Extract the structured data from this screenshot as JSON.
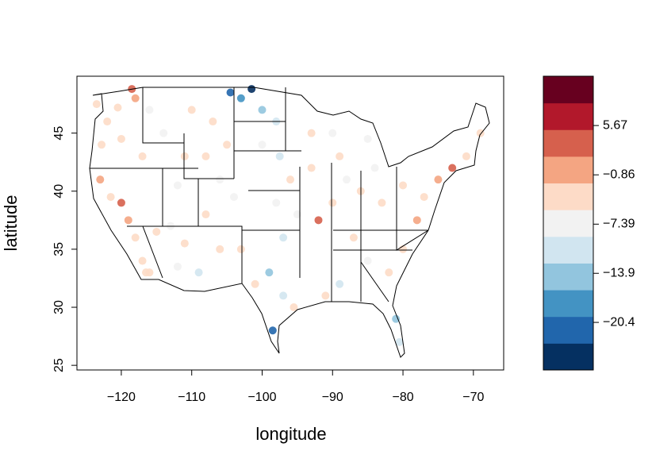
{
  "chart_data": {
    "type": "scatter",
    "xlabel": "longitude",
    "ylabel": "latitude",
    "xlim": [
      -126.3,
      -65.7
    ],
    "ylim": [
      24.6,
      49.9
    ],
    "xticks": [
      {
        "value": -120,
        "label": "−120"
      },
      {
        "value": -110,
        "label": "−110"
      },
      {
        "value": -100,
        "label": "−100"
      },
      {
        "value": -90,
        "label": "−90"
      },
      {
        "value": -80,
        "label": "−80"
      },
      {
        "value": -70,
        "label": "−70"
      }
    ],
    "yticks": [
      25,
      30,
      35,
      40,
      45
    ],
    "x": [
      -123.5,
      -122,
      -120.5,
      -118,
      -116,
      -122.8,
      -120,
      -117,
      -123,
      -121.5,
      -120,
      -119,
      -118,
      -117,
      -116.5,
      -115,
      -113,
      -112,
      -111,
      -114,
      -110,
      -107,
      -104.5,
      -103,
      -101.5,
      -100,
      -98,
      -97.5,
      -100,
      -105,
      -108,
      -106,
      -104,
      -108,
      -106,
      -109,
      -112,
      -111,
      -103,
      -101,
      -99,
      -97,
      -98.5,
      -95.5,
      -97,
      -95,
      -98,
      -96,
      -93,
      -92,
      -90,
      -88,
      -86,
      -84,
      -85,
      -90,
      -89,
      -93,
      -87,
      -85,
      -89,
      -91,
      -82,
      -81,
      -80.5,
      -80,
      -78,
      -77,
      -75,
      -73,
      -71,
      -69,
      -83,
      -80,
      -118.5,
      -116
    ],
    "y": [
      47.5,
      46,
      47.2,
      48,
      47,
      44,
      44.5,
      43,
      41,
      39.5,
      39,
      37.5,
      36,
      34,
      33,
      36.5,
      37,
      40.5,
      43,
      45,
      47,
      46,
      48.5,
      48,
      48.8,
      47,
      46,
      43,
      44,
      44,
      43,
      41,
      39.5,
      38,
      35,
      33,
      33.5,
      35.5,
      35,
      32,
      33,
      31,
      28,
      30,
      36,
      38,
      39,
      41,
      42,
      37.5,
      39,
      41,
      40,
      42,
      44.5,
      45,
      43,
      45,
      36,
      34,
      32,
      31,
      33,
      29,
      27,
      35,
      37.5,
      39.5,
      41,
      42,
      43,
      45,
      39,
      40.5,
      48.8,
      33
    ],
    "values": [
      -3,
      -2,
      -4,
      -1,
      -6,
      -3,
      -2,
      -5,
      -1,
      -2,
      5,
      -1,
      -2,
      -3,
      -4,
      -3,
      -6,
      -8,
      -5,
      -9,
      -4,
      -3,
      -22,
      -18,
      -24,
      -14,
      -10,
      -12,
      -9,
      -5,
      -3,
      -6,
      -8,
      -4,
      -5,
      -12,
      -6,
      -4,
      -3,
      -2,
      -13,
      -11,
      -20,
      -3,
      -10,
      -9,
      -7,
      -4,
      -3,
      5,
      -4,
      -6,
      -3,
      -8,
      -9,
      -6,
      -4,
      -2,
      -5,
      -6,
      -12,
      -4,
      -3,
      -14,
      -10,
      -4,
      -1,
      -2,
      0,
      3,
      -2,
      -5,
      -2,
      -3,
      4,
      -3
    ],
    "colorbar": {
      "lim": [
        -26.7,
        12.2
      ],
      "ticks": [
        {
          "value": 5.67,
          "label": "5.67"
        },
        {
          "value": -0.86,
          "label": "−0.86"
        },
        {
          "value": -7.39,
          "label": "−7.39"
        },
        {
          "value": -13.9,
          "label": "−13.9"
        },
        {
          "value": -20.4,
          "label": "−20.4"
        }
      ],
      "palette": [
        "#053061",
        "#2166ac",
        "#4393c3",
        "#92c5de",
        "#d1e5f0",
        "#f2f2f2",
        "#fddbc7",
        "#f4a582",
        "#d6604d",
        "#b2182b",
        "#67001f"
      ]
    }
  }
}
